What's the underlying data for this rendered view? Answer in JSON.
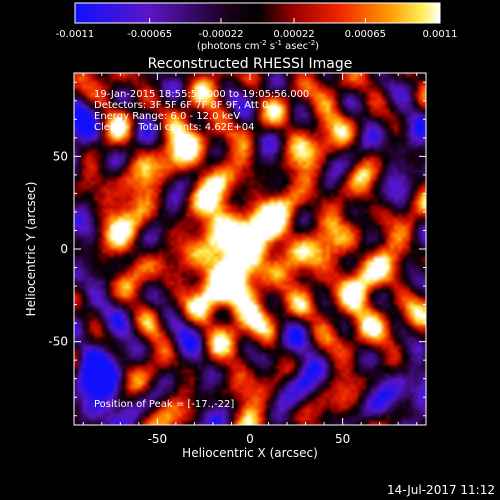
{
  "colorbar": {
    "tick_labels": [
      "-0.0011",
      "-0.00065",
      "-0.00022",
      "0.00022",
      "0.00065",
      "0.0011"
    ],
    "tick_values": [
      -0.0011,
      -0.00065,
      -0.00022,
      0.00022,
      0.00065,
      0.0011
    ],
    "range": [
      -0.0011,
      0.0011
    ],
    "units_text": "(photons cm",
    "units_sup1": "-2",
    "units_mid": " s",
    "units_sup2": "-1",
    "units_end": " asec",
    "units_sup3": "-2",
    "units_close": ")",
    "colormap": "blue-purple-black-red-orange-yellow-white"
  },
  "chart_data": {
    "type": "heatmap",
    "title": "Reconstructed RHESSI Image",
    "xlabel": "Heliocentric X (arcsec)",
    "ylabel": "Heliocentric Y (arcsec)",
    "xlim": [
      -95,
      95
    ],
    "ylim": [
      -95,
      95
    ],
    "xticks": [
      -50,
      0,
      50
    ],
    "xtick_labels": [
      "-50",
      "0",
      "50"
    ],
    "yticks": [
      50,
      0,
      -50
    ],
    "ytick_labels": [
      "50",
      "0",
      "-50"
    ],
    "annotations": [
      "19-Jan-2015 18:55:56.000 to 19:05:56.000",
      "Detectors: 3F 5F 6F 7F 8F 9F, Att 0",
      "Energy Range: 6.0 - 12.0 keV",
      "Clean     Total counts: 4.62E+04",
      "Position of Peak = [-17.,-22]"
    ],
    "peak": {
      "x": -17,
      "y": -22
    },
    "sources": [
      {
        "x": -20,
        "y": -20,
        "value": 0.0011
      },
      {
        "x": 12,
        "y": 8,
        "value": 0.001
      },
      {
        "x": -10,
        "y": 10,
        "value": 0.0008
      },
      {
        "x": -40,
        "y": 52,
        "value": 0.0008
      },
      {
        "x": 60,
        "y": -10,
        "value": 0.0006
      },
      {
        "x": 10,
        "y": -30,
        "value": 0.0005
      },
      {
        "x": 65,
        "y": -40,
        "value": 0.0005
      },
      {
        "x": -70,
        "y": 20,
        "value": 0.0003
      },
      {
        "x": 35,
        "y": 62,
        "value": 0.0004
      },
      {
        "x": -80,
        "y": -75,
        "value": -0.0009
      },
      {
        "x": 85,
        "y": -78,
        "value": -0.0008
      },
      {
        "x": -85,
        "y": 60,
        "value": -0.0006
      },
      {
        "x": 85,
        "y": 60,
        "value": -0.0005
      },
      {
        "x": 30,
        "y": -60,
        "value": -0.0005
      },
      {
        "x": -60,
        "y": -40,
        "value": -0.0004
      }
    ]
  },
  "footer": {
    "date": "14-Jul-2017 11:12"
  }
}
